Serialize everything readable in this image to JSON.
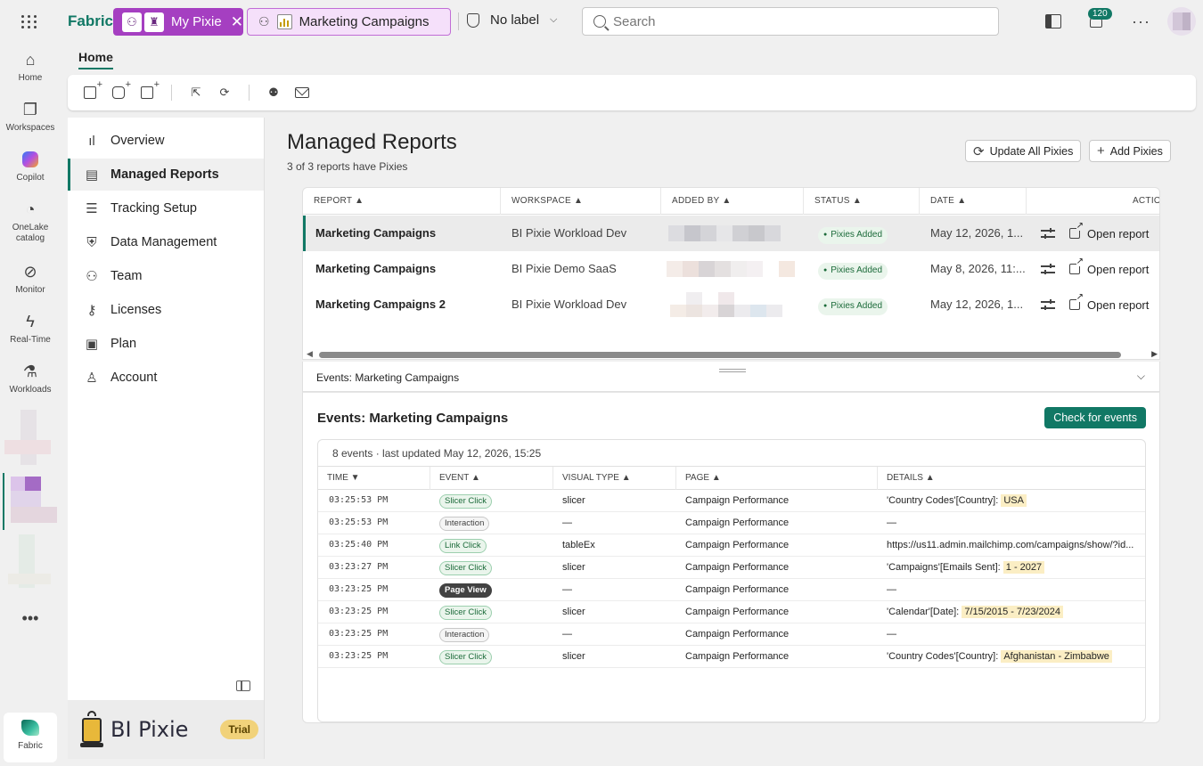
{
  "topbar": {
    "brand": "Fabric",
    "tab_pixie": "My Pixie",
    "tab_report": "Marketing Campaigns",
    "sensitivity": "No label",
    "search_placeholder": "Search",
    "notification_count": "120"
  },
  "rail": {
    "items": [
      "Home",
      "Workspaces",
      "Copilot",
      "OneLake catalog",
      "Monitor",
      "Real-Time",
      "Workloads"
    ],
    "bottom": "Fabric"
  },
  "main": {
    "home_tab": "Home"
  },
  "nav": {
    "items": [
      "Overview",
      "Managed Reports",
      "Tracking Setup",
      "Data Management",
      "Team",
      "Licenses",
      "Plan",
      "Account"
    ],
    "brand_name": "BI Pixie",
    "trial": "Trial"
  },
  "content": {
    "title": "Managed Reports",
    "subtitle": "3 of 3 reports have Pixies",
    "update_all": "Update All Pixies",
    "add_pixies": "Add Pixies"
  },
  "reports": {
    "headers": [
      "REPORT ▲",
      "WORKSPACE ▲",
      "ADDED BY ▲",
      "STATUS ▲",
      "DATE ▲",
      "ACTIO"
    ],
    "rows": [
      {
        "name": "Marketing Campaigns",
        "workspace": "BI Pixie Workload Dev",
        "status": "Pixies Added",
        "date": "May 12, 2026, 1...",
        "open": "Open report"
      },
      {
        "name": "Marketing Campaigns",
        "workspace": "BI Pixie Demo SaaS",
        "status": "Pixies Added",
        "date": "May 8, 2026, 11:...",
        "open": "Open report"
      },
      {
        "name": "Marketing Campaigns 2",
        "workspace": "BI Pixie Workload Dev",
        "status": "Pixies Added",
        "date": "May 12, 2026, 1...",
        "open": "Open report"
      }
    ]
  },
  "events": {
    "bar_label": "Events: Marketing Campaigns",
    "title": "Events: Marketing Campaigns",
    "check_button": "Check for events",
    "meta": "8 events · last updated May 12, 2026, 15:25",
    "headers": [
      "TIME ▼",
      "EVENT ▲",
      "VISUAL TYPE ▲",
      "PAGE ▲",
      "DETAILS ▲"
    ],
    "rows": [
      {
        "time": "03:25:53 PM",
        "event": "Slicer Click",
        "kind": "slicer",
        "visual": "slicer",
        "page": "Campaign Performance",
        "detail_prefix": "'Country Codes'[Country]: ",
        "detail_value": "USA"
      },
      {
        "time": "03:25:53 PM",
        "event": "Interaction",
        "kind": "interaction",
        "visual": "—",
        "page": "Campaign Performance",
        "detail_prefix": "—",
        "detail_value": ""
      },
      {
        "time": "03:25:40 PM",
        "event": "Link Click",
        "kind": "link",
        "visual": "tableEx",
        "page": "Campaign Performance",
        "detail_prefix": "https://us11.admin.mailchimp.com/campaigns/show/?id...",
        "detail_value": ""
      },
      {
        "time": "03:23:27 PM",
        "event": "Slicer Click",
        "kind": "slicer",
        "visual": "slicer",
        "page": "Campaign Performance",
        "detail_prefix": "'Campaigns'[Emails Sent]: ",
        "detail_value": "1 - 2027"
      },
      {
        "time": "03:23:25 PM",
        "event": "Page View",
        "kind": "pageview",
        "visual": "—",
        "page": "Campaign Performance",
        "detail_prefix": "—",
        "detail_value": ""
      },
      {
        "time": "03:23:25 PM",
        "event": "Slicer Click",
        "kind": "slicer",
        "visual": "slicer",
        "page": "Campaign Performance",
        "detail_prefix": "'Calendar'[Date]: ",
        "detail_value": "7/15/2015 - 7/23/2024"
      },
      {
        "time": "03:23:25 PM",
        "event": "Interaction",
        "kind": "interaction",
        "visual": "—",
        "page": "Campaign Performance",
        "detail_prefix": "—",
        "detail_value": ""
      },
      {
        "time": "03:23:25 PM",
        "event": "Slicer Click",
        "kind": "slicer",
        "visual": "slicer",
        "page": "Campaign Performance",
        "detail_prefix": "'Country Codes'[Country]: ",
        "detail_value": "Afghanistan - Zimbabwe"
      }
    ]
  },
  "colors": {
    "accent": "#117865",
    "pixie_tab": "#a53fc1",
    "report_tab_bg": "#f5e0fa"
  }
}
